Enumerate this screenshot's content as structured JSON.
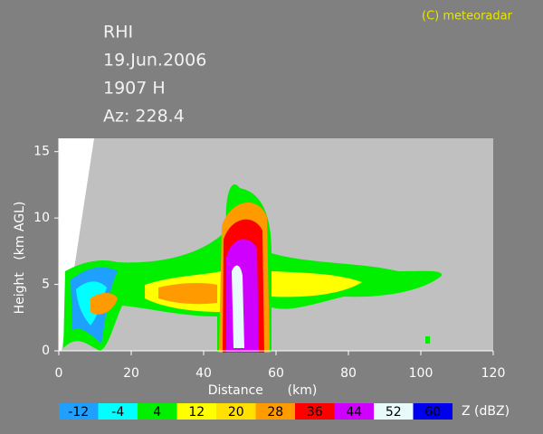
{
  "header": {
    "title": "RHI",
    "date": "19.Jun.2006",
    "time": "1907 H",
    "azimuth": "Az: 228.4",
    "copyright": "(C) meteoradar"
  },
  "axes": {
    "x_label": "Distance      (km)",
    "y_label": "Height   (km AGL)",
    "xlim": [
      0,
      120
    ],
    "ylim": [
      0,
      16
    ],
    "xticks": [
      0,
      20,
      40,
      60,
      80,
      100,
      120
    ],
    "yticks": [
      0,
      5,
      10,
      15
    ]
  },
  "colorbar": {
    "unit": "Z (dBZ)",
    "levels": [
      -12,
      -4,
      4,
      12,
      20,
      28,
      36,
      44,
      52,
      60
    ],
    "colors": [
      "#1fa0ff",
      "#00ffff",
      "#00f000",
      "#ffff00",
      "#ffe000",
      "#ff9a00",
      "#ff0000",
      "#d000ff",
      "#e8fafa",
      "#0000f0"
    ]
  }
}
